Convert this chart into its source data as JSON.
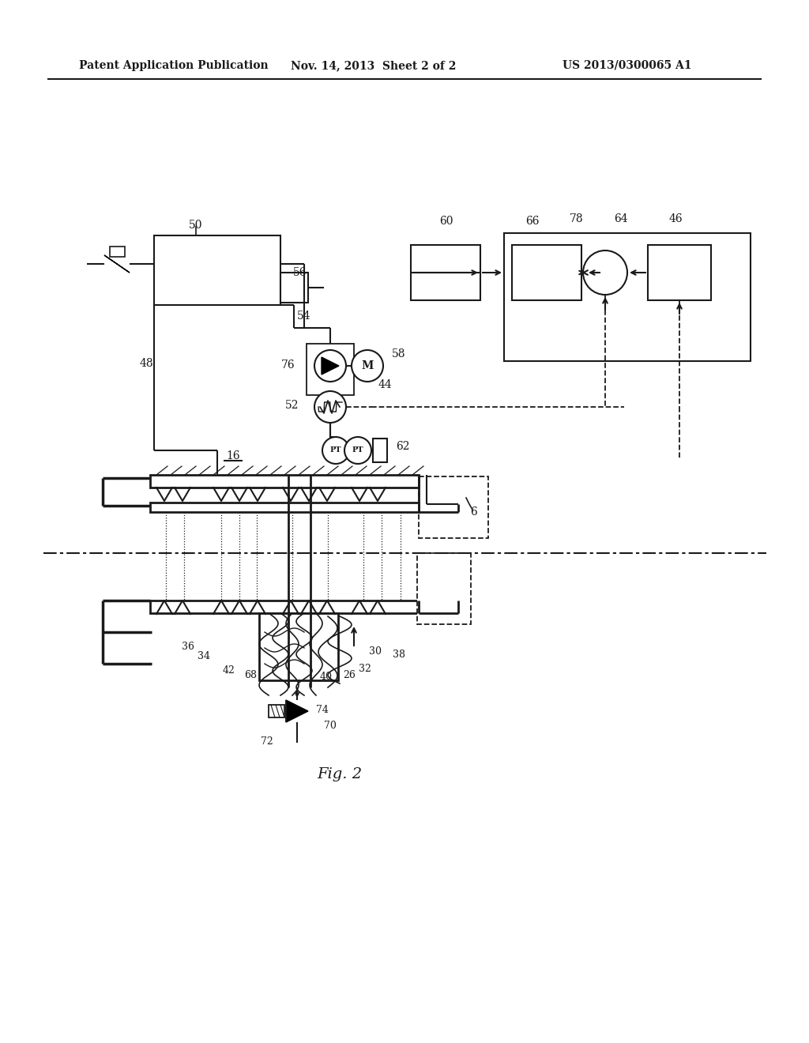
{
  "bg_color": "#ffffff",
  "header_left": "Patent Application Publication",
  "header_mid": "Nov. 14, 2013  Sheet 2 of 2",
  "header_right": "US 2013/0300065 A1",
  "fig_label": "Fig. 2",
  "lc": "#1a1a1a"
}
